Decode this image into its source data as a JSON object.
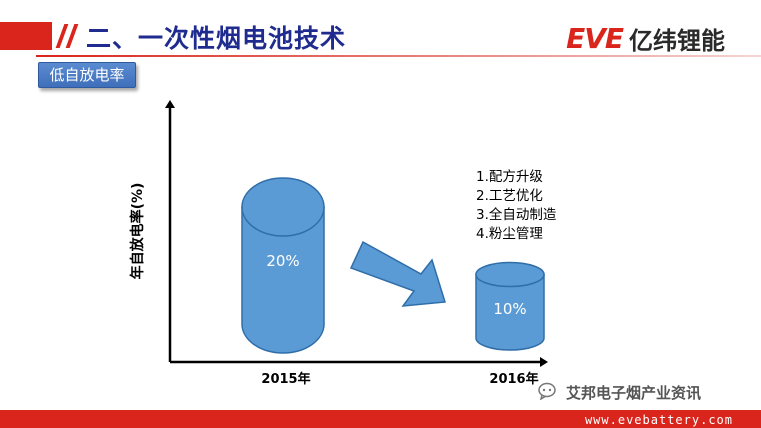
{
  "header": {
    "title": "二、一次性烟电池技术",
    "logo_latin": "EVE",
    "logo_cn": "亿纬锂能",
    "subtitle_badge": "低自放电率"
  },
  "chart_data": {
    "type": "bar",
    "ylabel": "年自放电率(%)",
    "xlabel": "",
    "categories": [
      "2015年",
      "2016年"
    ],
    "values": [
      20,
      10
    ],
    "data_labels": [
      "20%",
      "10%"
    ],
    "ylim": [
      0,
      25
    ],
    "grid": false,
    "annotations": [
      "1.配方升级",
      "2.工艺优化",
      "3.全自动制造",
      "4.粉尘管理"
    ],
    "colors": {
      "bar": "#5b9bd5",
      "bar_stroke": "#2f6ea8",
      "arrow": "#5b9bd5"
    }
  },
  "footer": {
    "watermark": "艾邦电子烟产业资讯",
    "url": "www.evebattery.com"
  }
}
